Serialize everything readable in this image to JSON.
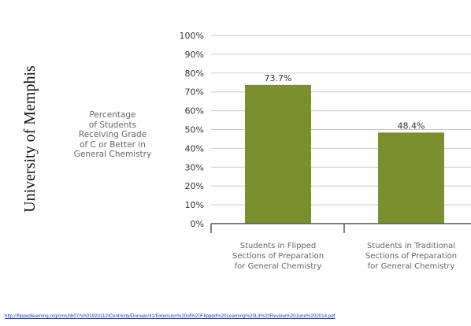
{
  "slide": {
    "side_title": "University of Memphis",
    "source_url": "http://flippedlearning.org/cms/lib07/VA01923112/Centricity/Domain/41/Extension%20of%20Flipped%20Learning%20Lit%20Review%20June%202014.pdf"
  },
  "chart_data": {
    "type": "bar",
    "ylabel_lines": [
      "Percentage",
      "of Students",
      "Receiving Grade",
      "of C or Better in",
      "General Chemistry"
    ],
    "categories": [
      [
        "Students in Flipped",
        "Sections of Preparation",
        "for General Chemistry"
      ],
      [
        "Students in Traditional",
        "Sections of Preparation",
        "for General Chemistry"
      ]
    ],
    "values": [
      73.7,
      48.4
    ],
    "value_labels": [
      "73.7%",
      "48.4%"
    ],
    "yticks": [
      "0%",
      "10%",
      "20%",
      "30%",
      "40%",
      "50%",
      "60%",
      "70%",
      "80%",
      "90%",
      "100%"
    ],
    "ylim": [
      0,
      100
    ],
    "grid": true,
    "colors": {
      "bar": "#7b8f2f",
      "grid": "#c9c9c9",
      "axis": "#555555",
      "text": "#666666"
    }
  }
}
